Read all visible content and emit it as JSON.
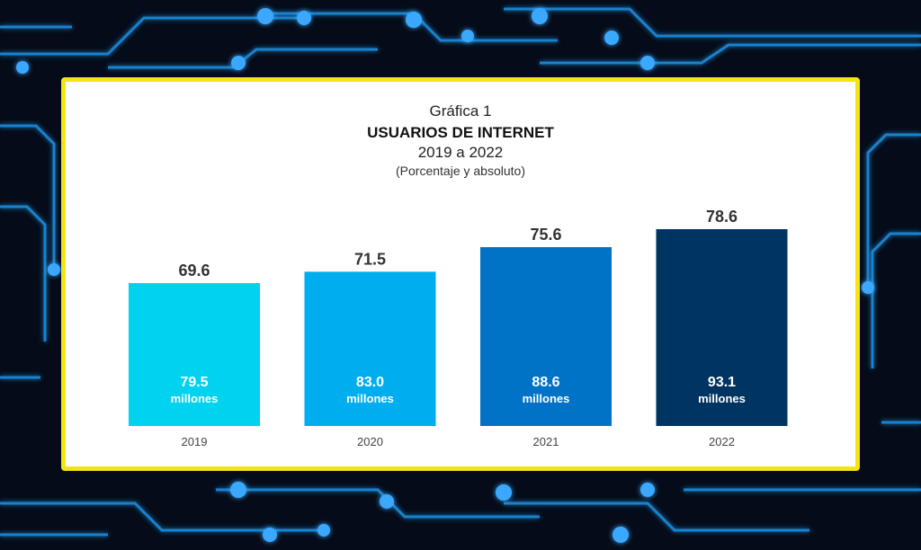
{
  "chart_data": {
    "type": "bar",
    "label": "Gráfica 1",
    "title": "USUARIOS DE INTERNET",
    "subtitle": "2019 a 2022",
    "note": "(Porcentaje y absoluto)",
    "categories": [
      "2019",
      "2020",
      "2021",
      "2022"
    ],
    "values": [
      69.6,
      71.5,
      75.6,
      78.6
    ],
    "value_labels": [
      "69.6",
      "71.5",
      "75.6",
      "78.6"
    ],
    "absolute_values": [
      "79.5",
      "83.0",
      "88.6",
      "93.1"
    ],
    "absolute_unit": "millones",
    "bar_colors": [
      "#00d2ef",
      "#00aeef",
      "#0073c6",
      "#003462"
    ],
    "ylim": [
      0,
      100
    ],
    "grid": false,
    "legend": "none"
  },
  "colors": {
    "panel_border": "#f5e414",
    "background": "#050b18",
    "circuit": "#1f8fe0"
  }
}
